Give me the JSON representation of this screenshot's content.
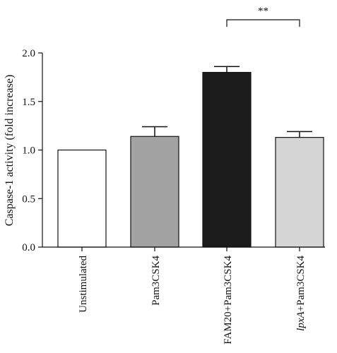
{
  "chart_data": {
    "type": "bar",
    "title": "",
    "xlabel": "",
    "ylabel": "Caspase-1 activity (fold increase)",
    "ylim": [
      0,
      2.0
    ],
    "yticks": [
      "0.0",
      "0.5",
      "1.0",
      "1.5",
      "2.0"
    ],
    "categories": [
      {
        "prefix": "",
        "italic": "",
        "suffix": "Unstimulated"
      },
      {
        "prefix": "",
        "italic": "",
        "suffix": "Pam3CSK4"
      },
      {
        "prefix": "",
        "italic": "",
        "suffix": "FAM20+Pam3CSK4"
      },
      {
        "prefix": "",
        "italic": "lpxA",
        "suffix": "+Pam3CSK4"
      }
    ],
    "values": [
      1.0,
      1.14,
      1.8,
      1.13
    ],
    "errors": [
      0.0,
      0.1,
      0.06,
      0.06
    ],
    "colors": [
      "#ffffff",
      "#a3a3a3",
      "#1c1c1c",
      "#d5d5d5"
    ],
    "significance": {
      "between": [
        2,
        3
      ],
      "label": "**"
    },
    "grid": false,
    "legend": "none"
  }
}
